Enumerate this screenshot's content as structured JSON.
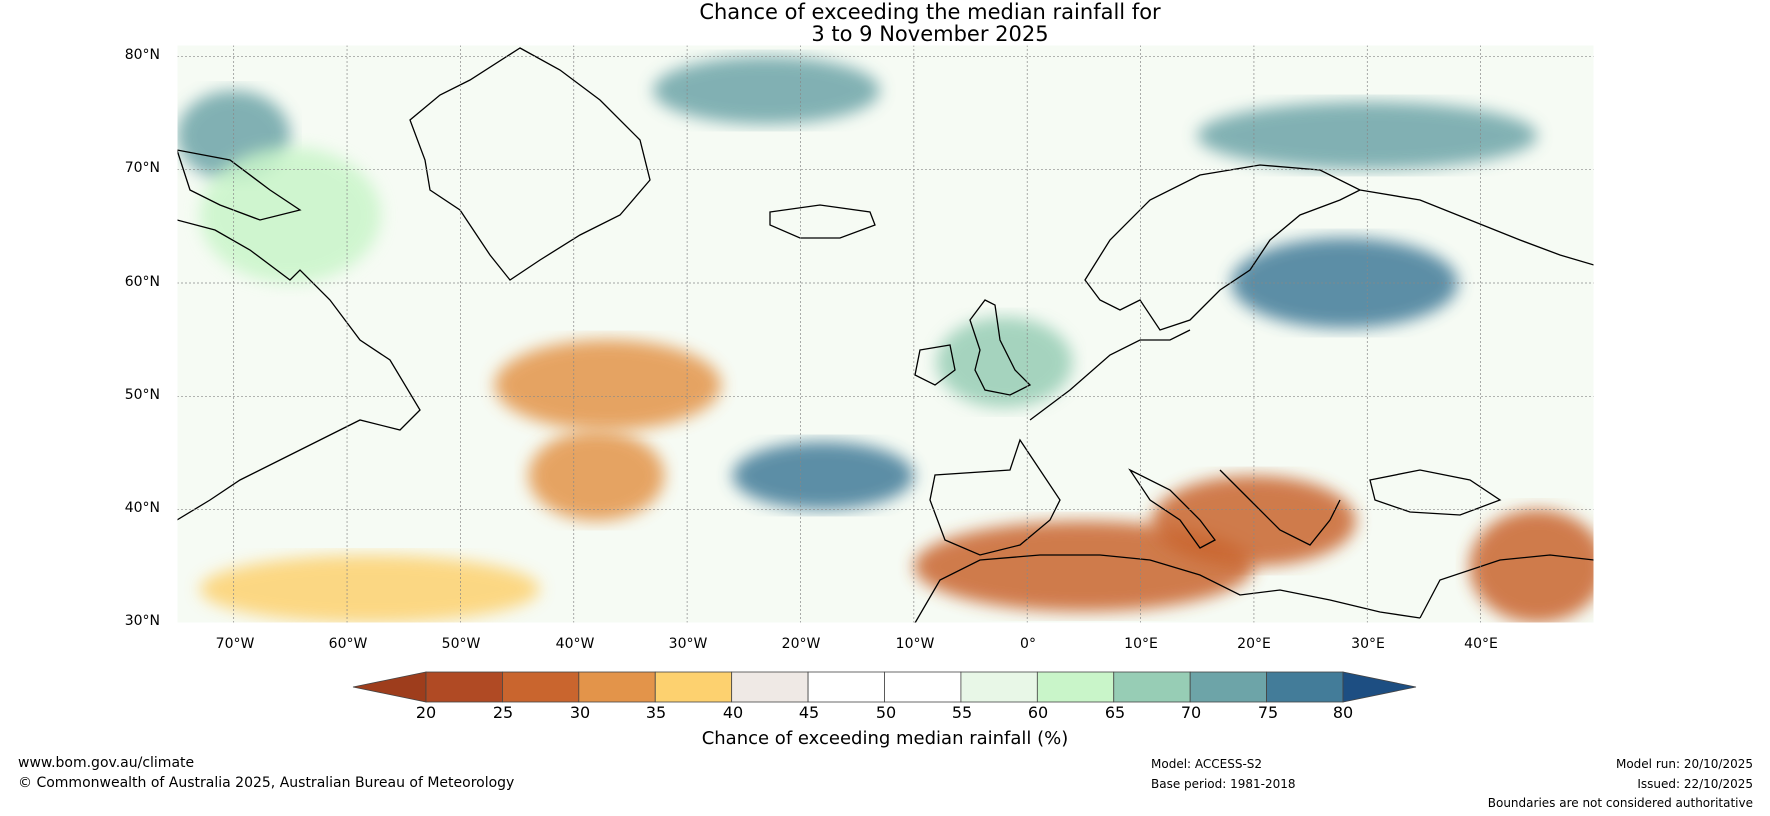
{
  "title_line1": "Chance of exceeding the median rainfall for",
  "title_line2": "3 to 9 November 2025",
  "map": {
    "lat_labels": [
      "80°N",
      "70°N",
      "60°N",
      "50°N",
      "40°N",
      "30°N"
    ],
    "lat_values": [
      80,
      70,
      60,
      50,
      40,
      30
    ],
    "lon_labels": [
      "70°W",
      "60°W",
      "50°W",
      "40°W",
      "30°W",
      "20°W",
      "10°W",
      "0°",
      "10°E",
      "20°E",
      "30°E",
      "40°E"
    ],
    "lon_values": [
      -70,
      -60,
      -50,
      -40,
      -30,
      -20,
      -10,
      0,
      10,
      20,
      30,
      40
    ],
    "lon_range": [
      -75,
      50
    ],
    "lat_range": [
      30,
      81
    ],
    "regions": [
      {
        "name": "greenland-sea-wet",
        "lon": -23,
        "lat": 77,
        "rx": 10,
        "ry": 3,
        "level": 70
      },
      {
        "name": "arctic-west-wet",
        "lon": -70,
        "lat": 73,
        "rx": 5,
        "ry": 4,
        "level": 70
      },
      {
        "name": "baffin-wet",
        "lon": -65,
        "lat": 66,
        "rx": 8,
        "ry": 6,
        "level": 60
      },
      {
        "name": "mid-atlantic-dry",
        "lon": -37,
        "lat": 51,
        "rx": 10,
        "ry": 4,
        "level": 30
      },
      {
        "name": "atlantic-dry-band",
        "lon": -38,
        "lat": 43,
        "rx": 6,
        "ry": 4,
        "level": 30
      },
      {
        "name": "subtropical-dry",
        "lon": -58,
        "lat": 33,
        "rx": 15,
        "ry": 3,
        "level": 35
      },
      {
        "name": "iberia-west-wet",
        "lon": -18,
        "lat": 43,
        "rx": 8,
        "ry": 3,
        "level": 75
      },
      {
        "name": "north-africa-dry",
        "lon": 5,
        "lat": 35,
        "rx": 15,
        "ry": 4,
        "level": 25
      },
      {
        "name": "mediterranean-dry",
        "lon": 20,
        "lat": 39,
        "rx": 9,
        "ry": 4,
        "level": 25
      },
      {
        "name": "anatolia-dry",
        "lon": 45,
        "lat": 35,
        "rx": 6,
        "ry": 5,
        "level": 25
      },
      {
        "name": "baltic-russia-wet",
        "lon": 28,
        "lat": 60,
        "rx": 10,
        "ry": 4,
        "level": 75
      },
      {
        "name": "barents-wet",
        "lon": 30,
        "lat": 73,
        "rx": 15,
        "ry": 3,
        "level": 70
      },
      {
        "name": "british-isles-wet",
        "lon": -2,
        "lat": 53,
        "rx": 6,
        "ry": 4,
        "level": 65
      }
    ]
  },
  "colorbar": {
    "ticks": [
      "20",
      "25",
      "30",
      "35",
      "40",
      "45",
      "50",
      "55",
      "60",
      "65",
      "70",
      "75",
      "80"
    ],
    "colors": [
      "#9e3d1c",
      "#b04a24",
      "#c9652e",
      "#e3944a",
      "#fdd16f",
      "#efe9e5",
      "#ffffff",
      "#ffffff",
      "#e8f7e7",
      "#c9f5c9",
      "#97cdb5",
      "#6da4a8",
      "#437c99",
      "#1d4e82"
    ],
    "label": "Chance of exceeding median rainfall (%)"
  },
  "footer": {
    "website": "www.bom.gov.au/climate",
    "copyright": "© Commonwealth of Australia 2025, Australian Bureau of Meteorology",
    "model": "Model: ACCESS-S2",
    "base_period": "Base period: 1981-2018",
    "model_run": "Model run: 20/10/2025",
    "issued": "Issued: 22/10/2025",
    "disclaimer": "Boundaries are not considered authoritative"
  }
}
